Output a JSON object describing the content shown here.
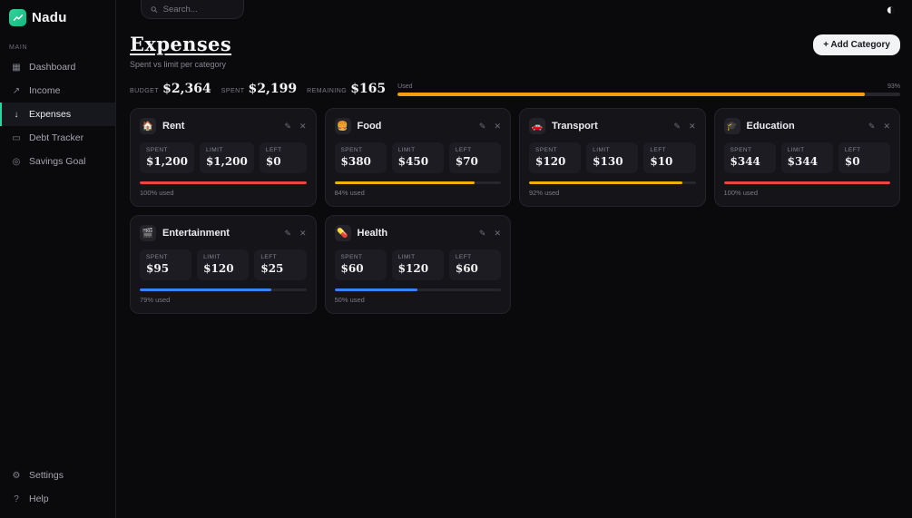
{
  "app": {
    "name": "Nadu"
  },
  "topbar": {
    "search_placeholder": "Search..."
  },
  "icons": {
    "edit": "✎",
    "close": "✕",
    "theme": "◐",
    "logo": "chart-line",
    "search": "magnifier"
  },
  "sidebar": {
    "section_label": "MAIN",
    "items": [
      {
        "label": "Dashboard",
        "icon": "▦",
        "icon_name": "dashboard-grid-icon",
        "active": false
      },
      {
        "label": "Income",
        "icon": "↗",
        "icon_name": "income-arrow-icon",
        "active": false
      },
      {
        "label": "Expenses",
        "icon": "↓",
        "icon_name": "expenses-arrow-icon",
        "active": true
      },
      {
        "label": "Debt Tracker",
        "icon": "▭",
        "icon_name": "debt-card-icon",
        "active": false
      },
      {
        "label": "Savings Goal",
        "icon": "◎",
        "icon_name": "savings-target-icon",
        "active": false
      }
    ],
    "footer_items": [
      {
        "label": "Settings",
        "icon": "⚙",
        "icon_name": "gear-icon"
      },
      {
        "label": "Help",
        "icon": "?",
        "icon_name": "help-icon"
      }
    ]
  },
  "header": {
    "title": "Expenses",
    "subtitle": "Spent vs limit per category",
    "add_button": "+ Add Category"
  },
  "summary": {
    "budget_label": "BUDGET",
    "budget": "$2,364",
    "spent_label": "SPENT",
    "spent": "$2,199",
    "remaining_label": "REMAINING",
    "remaining": "$165",
    "used_label": "Used",
    "used_pct_label": "93%",
    "used_value": 93,
    "bar_color": "#f59e0b"
  },
  "stat_labels": {
    "spent": "SPENT",
    "limit": "LIMIT",
    "left": "LEFT"
  },
  "cards": [
    {
      "icon": "🏠",
      "icon_name": "house-icon",
      "name": "Rent",
      "spent": "$1,200",
      "limit": "$1,200",
      "left": "$0",
      "used": "100% used",
      "pct": 100,
      "color": "#ef4444"
    },
    {
      "icon": "🍔",
      "icon_name": "burger-icon",
      "name": "Food",
      "spent": "$380",
      "limit": "$450",
      "left": "$70",
      "used": "84% used",
      "pct": 84,
      "color": "#eab308"
    },
    {
      "icon": "🚗",
      "icon_name": "car-icon",
      "name": "Transport",
      "spent": "$120",
      "limit": "$130",
      "left": "$10",
      "used": "92% used",
      "pct": 92,
      "color": "#eab308"
    },
    {
      "icon": "🎓",
      "icon_name": "graduation-cap-icon",
      "name": "Education",
      "spent": "$344",
      "limit": "$344",
      "left": "$0",
      "used": "100% used",
      "pct": 100,
      "color": "#ef4444"
    },
    {
      "icon": "🎬",
      "icon_name": "clapperboard-icon",
      "name": "Entertainment",
      "spent": "$95",
      "limit": "$120",
      "left": "$25",
      "used": "79% used",
      "pct": 79,
      "color": "#3b82f6"
    },
    {
      "icon": "💊",
      "icon_name": "pill-icon",
      "name": "Health",
      "spent": "$60",
      "limit": "$120",
      "left": "$60",
      "used": "50% used",
      "pct": 50,
      "color": "#3b82f6"
    }
  ]
}
